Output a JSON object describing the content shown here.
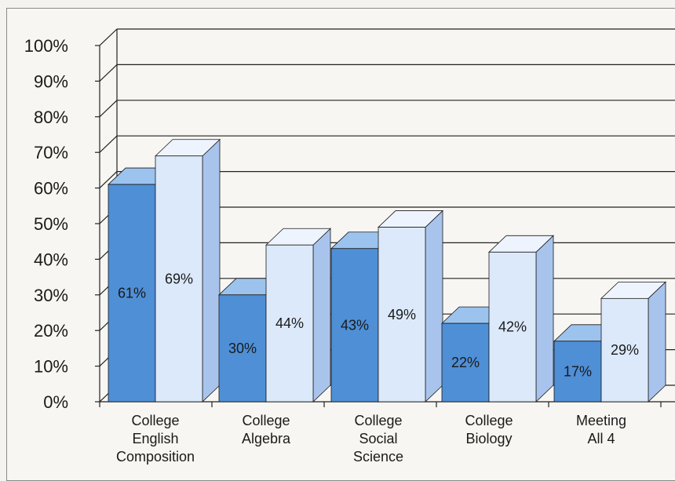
{
  "chart_data": {
    "type": "bar",
    "style": "3d-clustered",
    "categories": [
      [
        "College",
        "English",
        "Composition"
      ],
      [
        "College",
        "Algebra"
      ],
      [
        "College",
        "Social",
        "Science"
      ],
      [
        "College",
        "Biology"
      ],
      [
        "Meeting",
        "All 4"
      ]
    ],
    "series": [
      {
        "values": [
          61,
          30,
          43,
          22,
          17
        ],
        "labels": [
          "61%",
          "30%",
          "43%",
          "22%",
          "17%"
        ],
        "color": "#4f8fd6"
      },
      {
        "values": [
          69,
          44,
          49,
          42,
          29
        ],
        "labels": [
          "69%",
          "44%",
          "49%",
          "42%",
          "29%"
        ],
        "color": "#d9e8fb"
      }
    ],
    "yticks": [
      "0%",
      "10%",
      "20%",
      "30%",
      "40%",
      "50%",
      "60%",
      "70%",
      "80%",
      "90%",
      "100%"
    ],
    "ylim": [
      0,
      100
    ],
    "grid": true,
    "legend": "none"
  }
}
